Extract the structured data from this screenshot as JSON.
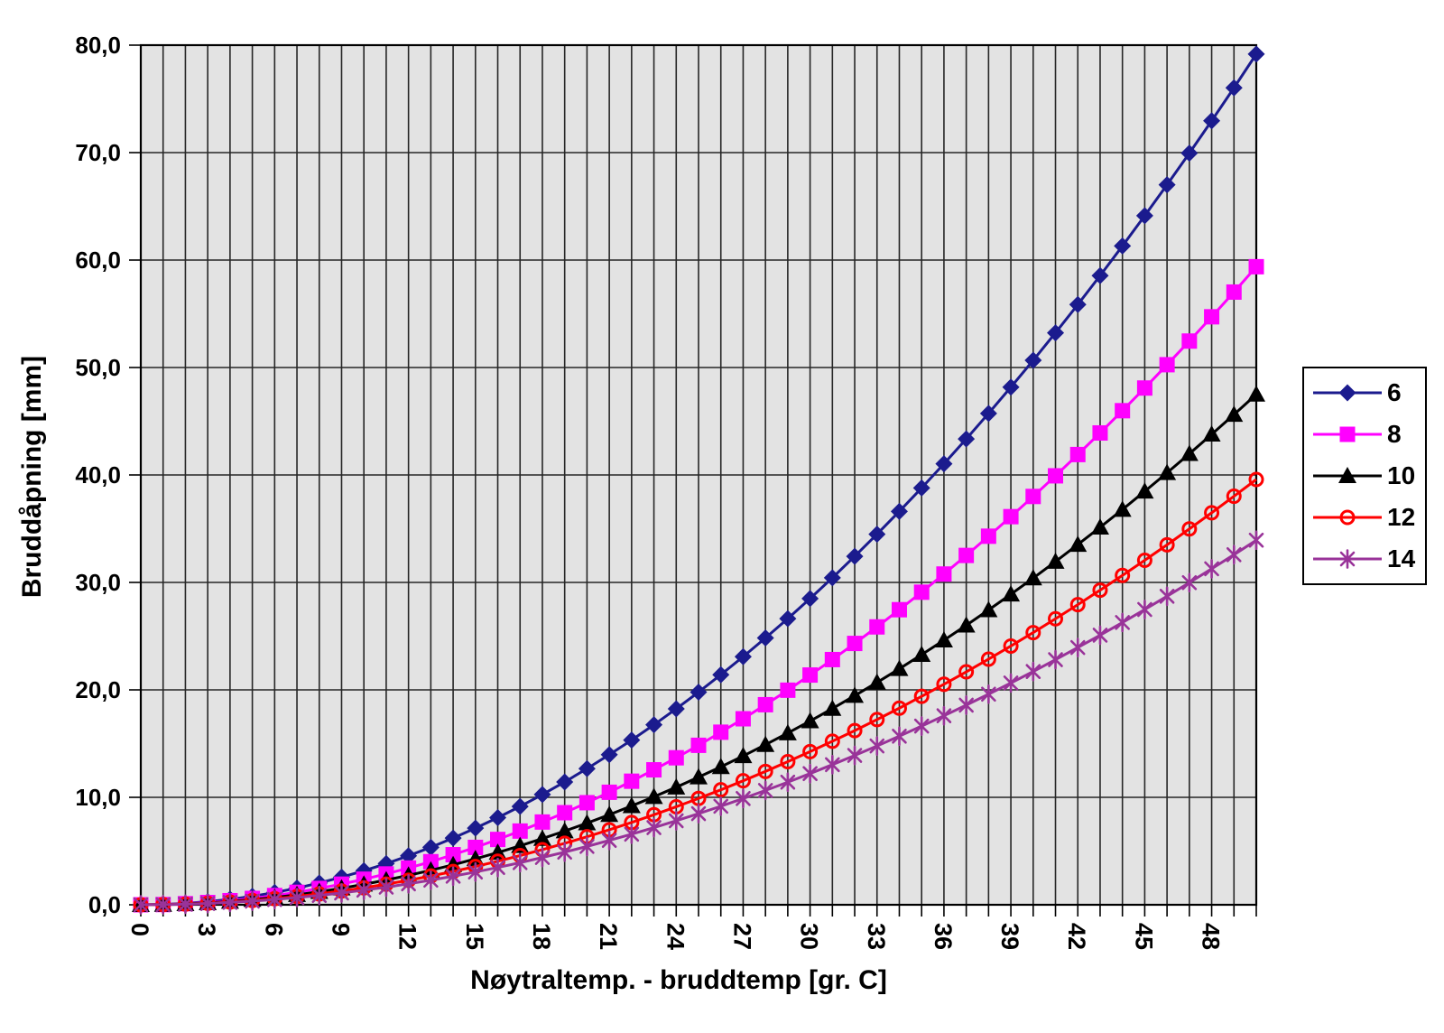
{
  "chart_data": {
    "type": "line",
    "title": "",
    "xlabel": "Nøytraltemp. - bruddtemp [gr. C]",
    "ylabel": "Bruddåpning [mm]",
    "xlim": [
      0,
      50
    ],
    "ylim": [
      0,
      80
    ],
    "x_grid_step": 1,
    "y_grid_step": 10,
    "grid": "on",
    "legend_position": "right",
    "colors": {
      "plot_bg": "#e3e3e3",
      "grid": "#262626",
      "axis": "#000000",
      "text": "#000000"
    },
    "x_tick_values": [
      0,
      3,
      6,
      9,
      12,
      15,
      18,
      21,
      24,
      27,
      30,
      33,
      36,
      39,
      42,
      45,
      48
    ],
    "x_tick_labels": [
      "0",
      "3",
      "6",
      "9",
      "12",
      "15",
      "18",
      "21",
      "24",
      "27",
      "30",
      "33",
      "36",
      "39",
      "42",
      "45",
      "48"
    ],
    "y_tick_values": [
      0,
      10,
      20,
      30,
      40,
      50,
      60,
      70,
      80
    ],
    "y_tick_labels": [
      "0,0",
      "10,0",
      "20,0",
      "30,0",
      "40,0",
      "50,0",
      "60,0",
      "70,0",
      "80,0"
    ],
    "x": [
      0,
      1,
      2,
      3,
      4,
      5,
      6,
      7,
      8,
      9,
      10,
      11,
      12,
      13,
      14,
      15,
      16,
      17,
      18,
      19,
      20,
      21,
      22,
      23,
      24,
      25,
      26,
      27,
      28,
      29,
      30,
      31,
      32,
      33,
      34,
      35,
      36,
      37,
      38,
      39,
      40,
      41,
      42,
      43,
      44,
      45,
      46,
      47,
      48,
      49,
      50
    ],
    "series": [
      {
        "name": "6",
        "color": "#1b1b8e",
        "marker": "diamond",
        "values": [
          0,
          0.03,
          0.13,
          0.29,
          0.51,
          0.79,
          1.14,
          1.55,
          2.03,
          2.57,
          3.17,
          3.83,
          4.56,
          5.35,
          6.21,
          7.13,
          8.11,
          9.15,
          10.26,
          11.43,
          12.67,
          13.97,
          15.33,
          16.75,
          18.24,
          19.79,
          21.41,
          23.09,
          24.83,
          26.63,
          28.5,
          30.43,
          32.43,
          34.49,
          36.61,
          38.79,
          41.04,
          43.35,
          45.73,
          48.17,
          50.67,
          53.23,
          55.86,
          58.55,
          61.31,
          64.13,
          67.01,
          69.95,
          72.96,
          76.03,
          79.17
        ]
      },
      {
        "name": "8",
        "color": "#ff00ff",
        "marker": "square",
        "values": [
          0,
          0.02,
          0.1,
          0.21,
          0.38,
          0.59,
          0.86,
          1.16,
          1.52,
          1.92,
          2.38,
          2.87,
          3.42,
          4.01,
          4.66,
          5.34,
          6.08,
          6.86,
          7.7,
          8.57,
          9.5,
          10.47,
          11.5,
          12.56,
          13.68,
          14.84,
          16.06,
          17.31,
          18.62,
          19.97,
          21.38,
          22.82,
          24.32,
          25.86,
          27.46,
          29.09,
          30.78,
          32.51,
          34.3,
          36.12,
          38.0,
          39.92,
          41.9,
          43.91,
          45.98,
          48.09,
          50.26,
          52.46,
          54.72,
          57.02,
          59.38
        ]
      },
      {
        "name": "10",
        "color": "#000000",
        "marker": "triangle",
        "values": [
          0,
          0.02,
          0.08,
          0.17,
          0.3,
          0.48,
          0.68,
          0.93,
          1.22,
          1.54,
          1.9,
          2.3,
          2.74,
          3.21,
          3.72,
          4.28,
          4.86,
          5.49,
          6.16,
          6.86,
          7.6,
          8.38,
          9.2,
          10.05,
          10.94,
          11.88,
          12.84,
          13.85,
          14.9,
          15.98,
          17.1,
          18.26,
          19.46,
          20.69,
          21.96,
          23.28,
          24.62,
          26.01,
          27.44,
          28.9,
          30.4,
          31.94,
          33.52,
          35.13,
          36.78,
          38.48,
          40.2,
          41.97,
          43.78,
          45.62,
          47.5
        ]
      },
      {
        "name": "12",
        "color": "#ff0000",
        "marker": "circle-open",
        "values": [
          0,
          0.02,
          0.06,
          0.14,
          0.25,
          0.4,
          0.57,
          0.78,
          1.01,
          1.28,
          1.58,
          1.92,
          2.28,
          2.68,
          3.1,
          3.56,
          4.05,
          4.58,
          5.13,
          5.72,
          6.33,
          6.98,
          7.66,
          8.38,
          9.12,
          9.9,
          10.7,
          11.54,
          12.41,
          13.32,
          14.25,
          15.22,
          16.21,
          17.24,
          18.3,
          19.4,
          20.52,
          21.68,
          22.86,
          24.08,
          25.33,
          26.62,
          27.93,
          29.28,
          30.65,
          32.06,
          33.5,
          34.98,
          36.48,
          38.02,
          39.58
        ]
      },
      {
        "name": "14",
        "color": "#993399",
        "marker": "asterisk",
        "values": [
          0,
          0.01,
          0.05,
          0.12,
          0.22,
          0.34,
          0.49,
          0.67,
          0.87,
          1.1,
          1.36,
          1.64,
          1.95,
          2.29,
          2.66,
          3.05,
          3.47,
          3.92,
          4.4,
          4.9,
          5.43,
          5.99,
          6.57,
          7.18,
          7.82,
          8.48,
          9.17,
          9.89,
          10.64,
          11.41,
          12.21,
          13.04,
          13.9,
          14.78,
          15.69,
          16.63,
          17.59,
          18.58,
          19.6,
          20.64,
          21.71,
          22.81,
          23.94,
          25.09,
          26.27,
          27.48,
          28.71,
          29.98,
          31.27,
          32.58,
          33.93
        ]
      }
    ]
  }
}
